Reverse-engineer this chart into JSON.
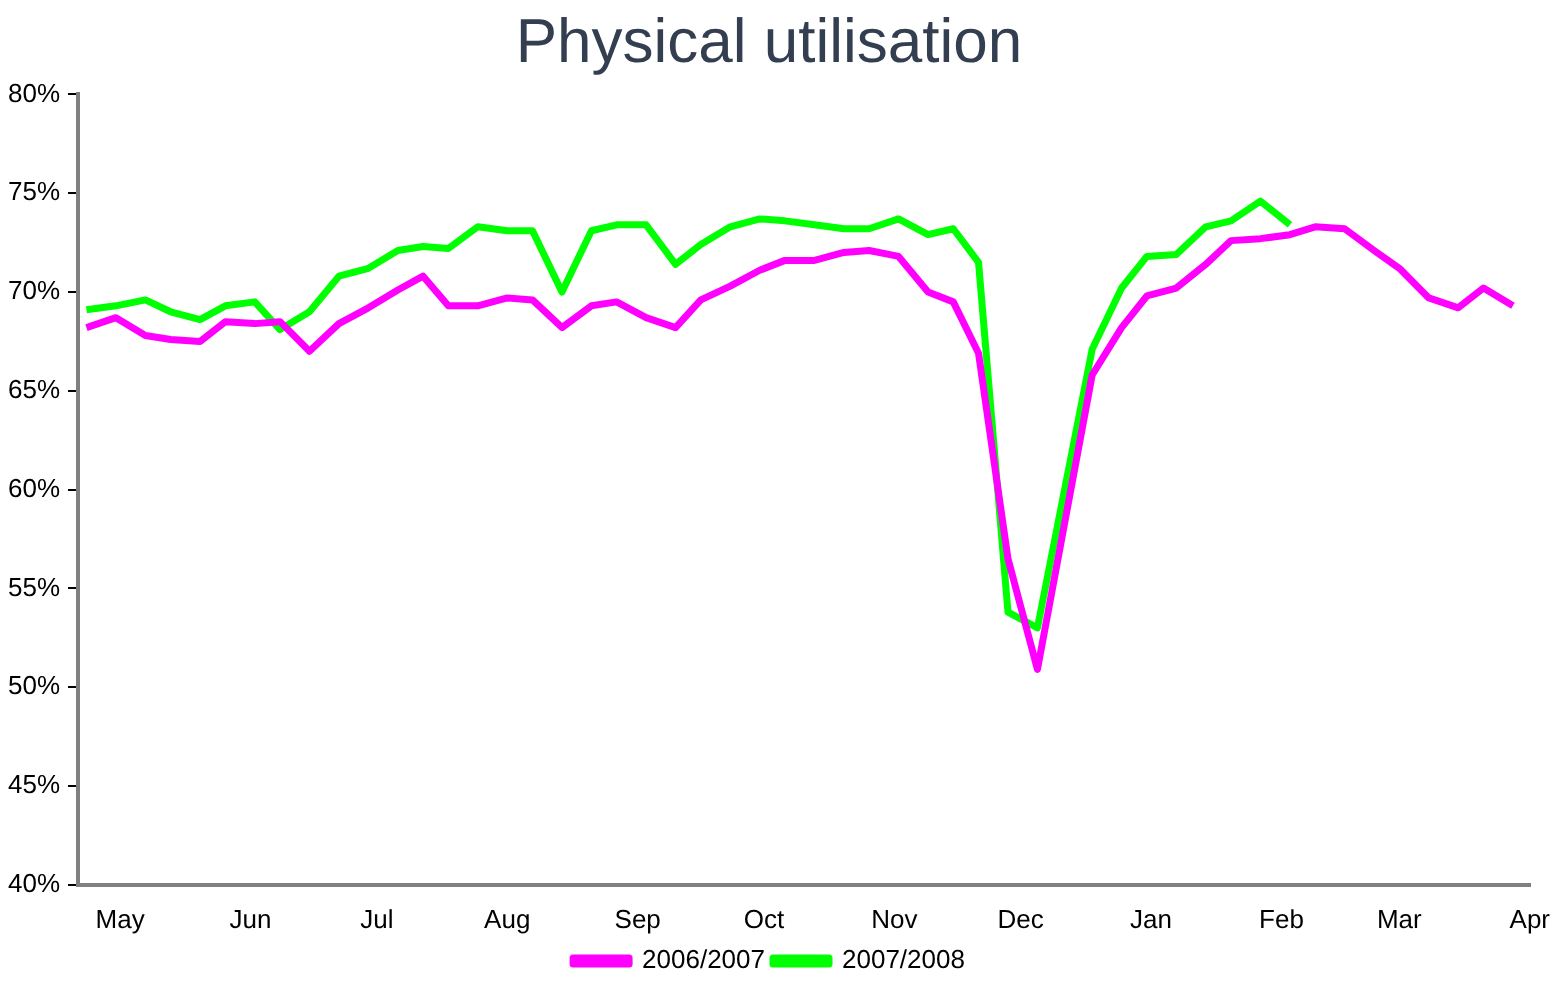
{
  "chart_data": {
    "type": "line",
    "title": "Physical utilisation",
    "x": [
      "2006-04-23",
      "2006-04-30",
      "2006-05-07",
      "2006-05-13",
      "2006-05-20",
      "2006-05-26",
      "2006-06-02",
      "2006-06-08",
      "2006-06-15",
      "2006-06-22",
      "2006-06-29",
      "2006-07-06",
      "2006-07-12",
      "2006-07-18",
      "2006-07-25",
      "2006-08-01",
      "2006-08-07",
      "2006-08-14",
      "2006-08-21",
      "2006-08-27",
      "2006-09-03",
      "2006-09-10",
      "2006-09-16",
      "2006-09-23",
      "2006-09-30",
      "2006-10-06",
      "2006-10-13",
      "2006-10-20",
      "2006-10-26",
      "2006-11-02",
      "2006-11-09",
      "2006-11-15",
      "2006-11-21",
      "2006-11-28",
      "2006-12-05",
      "2006-12-18",
      "2006-12-25",
      "2006-12-31",
      "2007-01-07",
      "2007-01-14",
      "2007-01-20",
      "2007-01-27",
      "2007-02-03",
      "2007-02-09",
      "2007-02-16",
      "2007-02-23",
      "2007-03-01",
      "2007-03-08",
      "2007-03-15",
      "2007-03-21",
      "2007-03-28"
    ],
    "xlim": [
      "2006-04-21",
      "2007-04-01"
    ],
    "xticks": [
      {
        "value": "2006-05-01",
        "label": "May"
      },
      {
        "value": "2006-06-01",
        "label": "Jun"
      },
      {
        "value": "2006-07-01",
        "label": "Jul"
      },
      {
        "value": "2006-08-01",
        "label": "Aug"
      },
      {
        "value": "2006-09-01",
        "label": "Sep"
      },
      {
        "value": "2006-10-01",
        "label": "Oct"
      },
      {
        "value": "2006-11-01",
        "label": "Nov"
      },
      {
        "value": "2006-12-01",
        "label": "Dec"
      },
      {
        "value": "2007-01-01",
        "label": "Jan"
      },
      {
        "value": "2007-02-01",
        "label": "Feb"
      },
      {
        "value": "2007-03-01",
        "label": "Mar"
      },
      {
        "value": "2007-04-01",
        "label": "Apr"
      }
    ],
    "ylim": [
      40,
      80
    ],
    "yticks": [
      {
        "value": 40,
        "label": "40%"
      },
      {
        "value": 45,
        "label": "45%"
      },
      {
        "value": 50,
        "label": "50%"
      },
      {
        "value": 55,
        "label": "55%"
      },
      {
        "value": 60,
        "label": "60%"
      },
      {
        "value": 65,
        "label": "65%"
      },
      {
        "value": 70,
        "label": "70%"
      },
      {
        "value": 75,
        "label": "75%"
      },
      {
        "value": 80,
        "label": "80%"
      }
    ],
    "grid": false,
    "legend": "bottom",
    "marker": "none",
    "line_style": "solid",
    "series": [
      {
        "name": "2006/2007",
        "color": "#ff00ff",
        "values": [
          68.2,
          68.7,
          67.8,
          67.6,
          67.5,
          68.5,
          68.4,
          68.5,
          67.0,
          68.4,
          69.2,
          70.1,
          70.8,
          69.3,
          69.3,
          69.7,
          69.6,
          68.2,
          69.3,
          69.5,
          68.7,
          68.2,
          69.6,
          70.3,
          71.1,
          71.6,
          71.6,
          72.0,
          72.1,
          71.8,
          70.0,
          69.5,
          66.9,
          56.5,
          50.9,
          65.8,
          68.2,
          69.8,
          70.2,
          71.4,
          72.6,
          72.7,
          72.9,
          73.3,
          73.2,
          72.1,
          71.2,
          69.7,
          69.2,
          70.2,
          69.3
        ]
      },
      {
        "name": "2007/2008",
        "color": "#00ff00",
        "values": [
          69.1,
          69.3,
          69.6,
          69.0,
          68.6,
          69.3,
          69.5,
          68.1,
          69.0,
          70.8,
          71.2,
          72.1,
          72.3,
          72.2,
          73.3,
          73.1,
          73.1,
          70.0,
          73.1,
          73.4,
          73.4,
          71.4,
          72.4,
          73.3,
          73.7,
          73.6,
          73.4,
          73.2,
          73.2,
          73.7,
          72.9,
          73.2,
          71.5,
          53.8,
          53.0,
          67.1,
          70.2,
          71.8,
          71.9,
          73.3,
          73.6,
          74.6,
          73.4,
          null,
          null,
          null,
          null,
          null,
          null,
          null,
          null
        ]
      }
    ]
  }
}
